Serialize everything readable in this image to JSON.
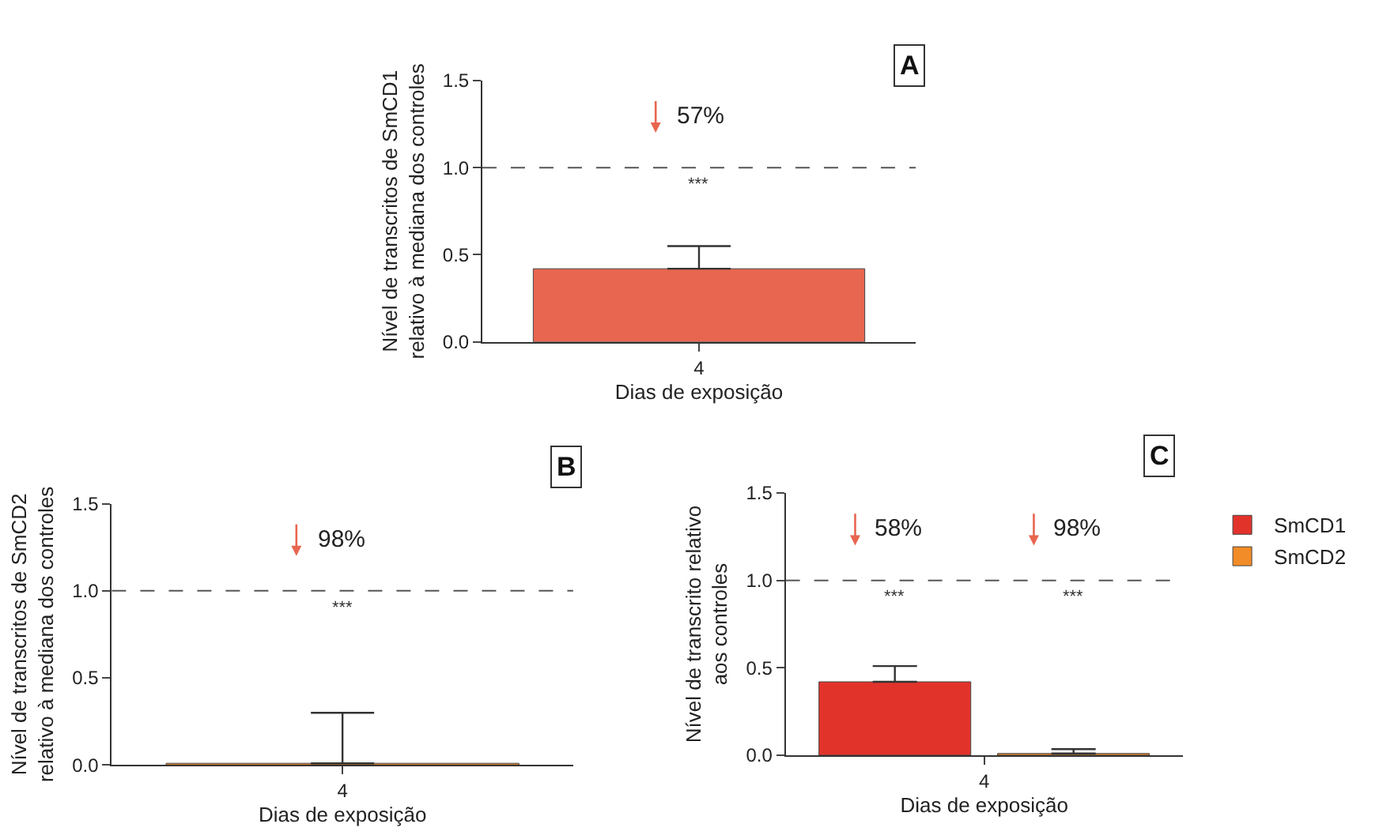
{
  "chart_data": [
    {
      "type": "bar",
      "ylabel": "Nível de transcritos de SmCD1\nrelativo à mediana dos controles",
      "xlabel": "Dias de exposição",
      "categories": [
        "4"
      ],
      "series": [
        {
          "color": "#e8664f",
          "values": [
            0.42
          ],
          "errors": [
            [
              0.42,
              0.55
            ]
          ]
        }
      ],
      "ylim": [
        0,
        1.5
      ],
      "yticks": [
        {
          "value": 0,
          "label": "0.0"
        },
        {
          "value": 0.5,
          "label": "0.5"
        },
        {
          "value": 1,
          "label": "1.0"
        },
        {
          "value": 1.5,
          "label": "1.5"
        }
      ],
      "ref_lines": [
        {
          "axis": "y",
          "value": 1.0,
          "line_style": "dashed",
          "color": "#555555"
        }
      ],
      "annotations": [
        "A",
        "57%",
        "***"
      ],
      "legend": false
    },
    {
      "type": "bar",
      "ylabel": "Nível de transcritos de SmCD2\nrelativo à mediana dos controles",
      "xlabel": "Dias de exposição",
      "categories": [
        "4"
      ],
      "series": [
        {
          "color": "#e8832a",
          "values": [
            0.01
          ],
          "errors": [
            [
              0.01,
              0.3
            ]
          ]
        }
      ],
      "ylim": [
        0,
        1.5
      ],
      "yticks": [
        {
          "value": 0,
          "label": "0.0"
        },
        {
          "value": 0.5,
          "label": "0.5"
        },
        {
          "value": 1,
          "label": "1.0"
        },
        {
          "value": 1.5,
          "label": "1.5"
        }
      ],
      "ref_lines": [
        {
          "axis": "y",
          "value": 1.0,
          "line_style": "dashed",
          "color": "#555555"
        }
      ],
      "annotations": [
        "B",
        "98%",
        "***"
      ],
      "legend": false
    },
    {
      "type": "bar",
      "ylabel": "Nível de transcrito relativo\naos controles",
      "xlabel": "Dias de exposição",
      "categories": [
        "4"
      ],
      "series": [
        {
          "name": "SmCD1",
          "color": "#e2332b",
          "values": [
            0.42
          ],
          "errors": [
            [
              0.42,
              0.51
            ]
          ]
        },
        {
          "name": "SmCD2",
          "color": "#f28c28",
          "values": [
            0.01
          ],
          "errors": [
            [
              0.01,
              0.035
            ]
          ]
        }
      ],
      "ylim": [
        0,
        1.5
      ],
      "yticks": [
        {
          "value": 0,
          "label": "0.0"
        },
        {
          "value": 0.5,
          "label": "0.5"
        },
        {
          "value": 1,
          "label": "1.0"
        },
        {
          "value": 1.5,
          "label": "1.5"
        }
      ],
      "ref_lines": [
        {
          "axis": "y",
          "value": 1.0,
          "line_style": "dashed",
          "color": "#555555"
        }
      ],
      "annotations": [
        "C",
        "58%",
        "***",
        "98%",
        "***"
      ],
      "legend": "right"
    }
  ]
}
